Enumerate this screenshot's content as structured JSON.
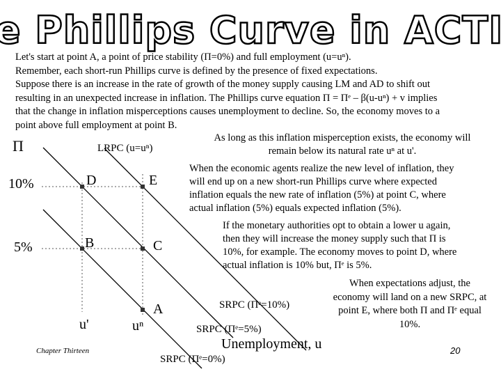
{
  "header": {
    "title": "The Phillips Curve in ACTION"
  },
  "intro": {
    "lines": [
      "Let's start at point A, a point of price stability (Π=0%) and full employment (u=uⁿ).",
      "Remember, each short-run Phillips curve is defined by the presence of fixed expectations.",
      "Suppose there is an increase in the rate of growth of the money supply causing LM and AD to shift out",
      "resulting in an unexpected increase in inflation. The Phillips curve equation Π = Πᵉ – β(u-uⁿ) + v implies",
      "that the change in inflation misperceptions causes unemployment to decline. So, the economy moves to a",
      "point above full employment at point B."
    ]
  },
  "notes": [
    {
      "lines": [
        "As long as this inflation misperception exists, the economy will",
        "remain below its natural rate uⁿ at u'."
      ]
    },
    {
      "lines": [
        "When the economic agents realize the new level of inflation, they",
        "will end up on a new short-run Phillips curve where expected",
        "inflation equals the new rate of inflation (5%) at point C, where",
        "actual inflation (5%) equals expected inflation (5%)."
      ]
    },
    {
      "lines": [
        "If the monetary authorities opt to obtain a lower u again,",
        "then they will increase the money supply such that Π is",
        "10%, for example. The economy moves to point D, where",
        "actual inflation is 10% but, Πᵉ is 5%."
      ]
    },
    {
      "lines": [
        "When expectations adjust, the",
        "economy will land on a new SRPC, at",
        "point E, where both Π and Πᵉ equal",
        "10%."
      ]
    }
  ],
  "diagram": {
    "y_axis_label": "Π",
    "x_axis_label": "Unemployment, u",
    "lrpc_label": "LRPC (u=uⁿ)",
    "y_labels": [
      "10%",
      "5%"
    ],
    "x_labels": [
      "u'",
      "uⁿ"
    ],
    "points": [
      "D",
      "E",
      "B",
      "C",
      "A"
    ],
    "curves": [
      "SRPC (Πᵉ=10%)",
      "SRPC (Πᵉ=5%)",
      "SRPC (Πᵉ=0%)"
    ]
  },
  "footer": {
    "chapter": "Chapter Thirteen",
    "page": "20"
  }
}
